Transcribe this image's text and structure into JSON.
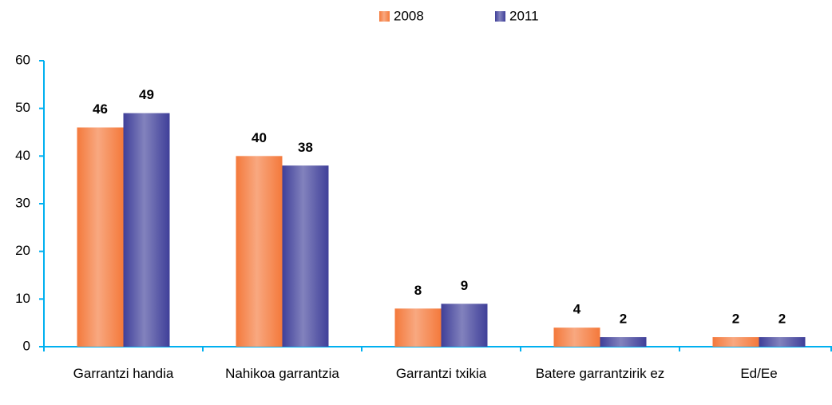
{
  "chart_data": {
    "type": "bar",
    "categories": [
      "Garrantzi handia",
      "Nahikoa garrantzia",
      "Garrantzi txikia",
      "Batere garrantzirik ez",
      "Ed/Ee"
    ],
    "series": [
      {
        "name": "2008",
        "color": "#f4793b",
        "values": [
          46,
          40,
          8,
          4,
          2
        ]
      },
      {
        "name": "2011",
        "color": "#3f3f99",
        "values": [
          49,
          38,
          9,
          2,
          2
        ]
      }
    ],
    "ylim": [
      0,
      60
    ],
    "yticks": [
      0,
      10,
      20,
      30,
      40,
      50,
      60
    ],
    "axis_color": "#00b0f0",
    "legend": "top"
  }
}
